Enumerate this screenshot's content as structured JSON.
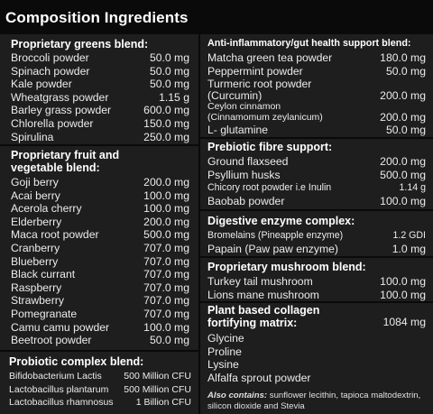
{
  "title": "Composition Ingredients",
  "left": {
    "greens": {
      "heading": "Proprietary greens blend:",
      "items": [
        {
          "name": "Broccoli powder",
          "amount": "50.0 mg"
        },
        {
          "name": "Spinach powder",
          "amount": "50.0 mg"
        },
        {
          "name": "Kale powder",
          "amount": "50.0 mg"
        },
        {
          "name": "Wheatgrass powder",
          "amount": "1.15 g"
        },
        {
          "name": "Barley grass powder",
          "amount": "600.0 mg"
        },
        {
          "name": "Chlorella powder",
          "amount": "150.0 mg"
        },
        {
          "name": "Spirulina",
          "amount": "250.0 mg"
        }
      ]
    },
    "fruit": {
      "heading": "Proprietary fruit and vegetable blend:",
      "items": [
        {
          "name": "Goji berry",
          "amount": "200.0 mg"
        },
        {
          "name": "Acai berry",
          "amount": "100.0 mg"
        },
        {
          "name": "Acerola cherry",
          "amount": "100.0 mg"
        },
        {
          "name": "Elderberry",
          "amount": "200.0 mg"
        },
        {
          "name": "Maca root powder",
          "amount": "500.0 mg"
        },
        {
          "name": "Cranberry",
          "amount": "707.0 mg"
        },
        {
          "name": "Blueberry",
          "amount": "707.0 mg"
        },
        {
          "name": "Black currant",
          "amount": "707.0 mg"
        },
        {
          "name": "Raspberry",
          "amount": "707.0 mg"
        },
        {
          "name": "Strawberry",
          "amount": "707.0 mg"
        },
        {
          "name": "Pomegranate",
          "amount": "707.0 mg"
        },
        {
          "name": "Camu camu powder",
          "amount": "100.0 mg"
        },
        {
          "name": "Beetroot powder",
          "amount": "50.0 mg"
        }
      ]
    },
    "probiotic": {
      "heading": "Probiotic complex blend:",
      "items": [
        {
          "name": "Bifidobacterium Lactis",
          "amount": "500 Million CFU"
        },
        {
          "name": "Lactobacillus plantarum",
          "amount": "500 Million CFU"
        },
        {
          "name": "Lactobacillus rhamnosus",
          "amount": "1 Billion CFU"
        }
      ]
    }
  },
  "right": {
    "antiinflam": {
      "heading": "Anti-inflammatory/gut health support blend:",
      "items": [
        {
          "name": "Matcha green tea powder",
          "amount": "180.0 mg"
        },
        {
          "name": "Peppermint powder",
          "amount": "50.0 mg"
        },
        {
          "name": "Turmeric root powder (Curcumin)",
          "amount": "200.0 mg"
        },
        {
          "name": "Ceylon cinnamon (Cinnamomum zeylanicum)",
          "amount": "200.0 mg"
        },
        {
          "name": "L- glutamine",
          "amount": "50.0 mg"
        }
      ]
    },
    "prebiotic": {
      "heading": "Prebiotic fibre support:",
      "items": [
        {
          "name": "Ground flaxseed",
          "amount": "200.0 mg"
        },
        {
          "name": "Psyllium husks",
          "amount": "500.0 mg"
        },
        {
          "name": "Chicory root powder i.e Inulin",
          "amount": "1.14 g"
        },
        {
          "name": "Baobab powder",
          "amount": "100.0 mg"
        }
      ]
    },
    "digestive": {
      "heading": "Digestive enzyme complex:",
      "items": [
        {
          "name": "Bromelains (Pineapple enzyme)",
          "amount": "1.2 GDI"
        },
        {
          "name": "Papain (Paw paw enzyme)",
          "amount": "1.0 mg"
        }
      ]
    },
    "mushroom": {
      "heading": "Proprietary mushroom blend:",
      "items": [
        {
          "name": "Turkey tail mushroom",
          "amount": "100.0 mg"
        },
        {
          "name": "Lions mane mushroom",
          "amount": "100.0 mg"
        }
      ]
    },
    "collagen": {
      "heading": "Plant based collagen fortifying matrix:",
      "amount": "1084 mg",
      "items": [
        "Glycine",
        "Proline",
        "Lysine",
        "Alfalfa sprout powder"
      ]
    },
    "also": {
      "label": "Also contains:",
      "text": "sunflower lecithin, tapioca maltodextrin, silicon dioxide and Stevia"
    }
  }
}
